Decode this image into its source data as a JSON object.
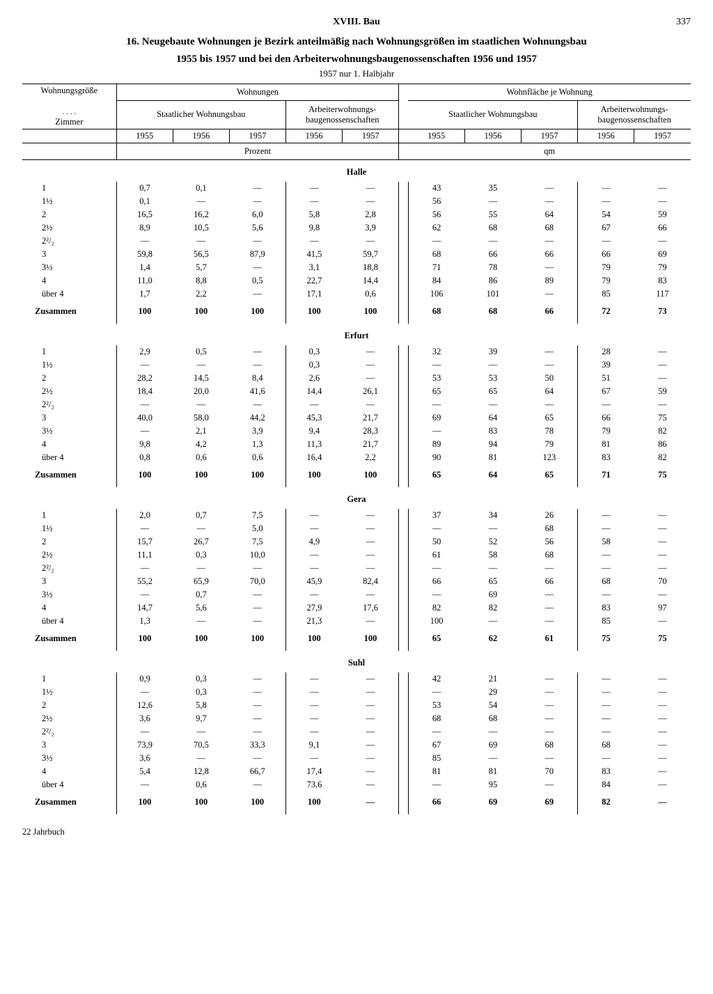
{
  "page": {
    "section": "XVIII. Bau",
    "number": "337",
    "title_l1": "16. Neugebaute Wohnungen je Bezirk anteilmäßig nach Wohnungsgrößen im staatlichen Wohnungsbau",
    "title_l2": "1955 bis 1957 und bei den Arbeiterwohnungsbaugenossenschaften 1956 und 1957",
    "subtitle": "1957 nur 1. Halbjahr",
    "footer": "22 Jahrbuch"
  },
  "headers": {
    "col_size": "Wohnungsgröße",
    "col_rooms": ". . . .\nZimmer",
    "wohnungen": "Wohnungen",
    "flaeche": "Wohnfläche je Wohnung",
    "staat": "Staatlicher Wohnungsbau",
    "awg": "Arbeiterwohnungs-\nbaugenossenschaften",
    "y1955": "1955",
    "y1956": "1956",
    "y1957": "1957",
    "unit_pct": "Prozent",
    "unit_qm": "qm",
    "sum": "Zusammen"
  },
  "row_labels": [
    "1",
    "1½",
    "2",
    "2½",
    "2²/₂",
    "3",
    "3½",
    "4",
    "über 4"
  ],
  "dash": "—",
  "groups": [
    {
      "name": "Halle",
      "rows": [
        [
          "0,7",
          "0,1",
          "—",
          "—",
          "—",
          "43",
          "35",
          "—",
          "—",
          "—"
        ],
        [
          "0,1",
          "—",
          "—",
          "—",
          "—",
          "56",
          "—",
          "—",
          "—",
          "—"
        ],
        [
          "16,5",
          "16,2",
          "6,0",
          "5,8",
          "2,8",
          "56",
          "55",
          "64",
          "54",
          "59"
        ],
        [
          "8,9",
          "10,5",
          "5,6",
          "9,8",
          "3,9",
          "62",
          "68",
          "68",
          "67",
          "66"
        ],
        [
          "—",
          "—",
          "—",
          "—",
          "—",
          "—",
          "—",
          "—",
          "—",
          "—"
        ],
        [
          "59,8",
          "56,5",
          "87,9",
          "41,5",
          "59,7",
          "68",
          "66",
          "66",
          "66",
          "69"
        ],
        [
          "1,4",
          "5,7",
          "—",
          "3,1",
          "18,8",
          "71",
          "78",
          "—",
          "79",
          "79"
        ],
        [
          "11,0",
          "8,8",
          "0,5",
          "22,7",
          "14,4",
          "84",
          "86",
          "89",
          "79",
          "83"
        ],
        [
          "1,7",
          "2,2",
          "—",
          "17,1",
          "0,6",
          "106",
          "101",
          "—",
          "85",
          "117"
        ]
      ],
      "sum": [
        "100",
        "100",
        "100",
        "100",
        "100",
        "68",
        "68",
        "66",
        "72",
        "73"
      ]
    },
    {
      "name": "Erfurt",
      "rows": [
        [
          "2,9",
          "0,5",
          "—",
          "0,3",
          "—",
          "32",
          "39",
          "—",
          "28",
          "—"
        ],
        [
          "—",
          "—",
          "—",
          "0,3",
          "—",
          "—",
          "—",
          "—",
          "39",
          "—"
        ],
        [
          "28,2",
          "14,5",
          "8,4",
          "2,6",
          "—",
          "53",
          "53",
          "50",
          "51",
          "—"
        ],
        [
          "18,4",
          "20,0",
          "41,6",
          "14,4",
          "26,1",
          "65",
          "65",
          "64",
          "67",
          "59"
        ],
        [
          "—",
          "—",
          "—",
          "—",
          "—",
          "—",
          "—",
          "—",
          "—",
          "—"
        ],
        [
          "40,0",
          "58,0",
          "44,2",
          "45,3",
          "21,7",
          "69",
          "64",
          "65",
          "66",
          "75"
        ],
        [
          "—",
          "2,1",
          "3,9",
          "9,4",
          "28,3",
          "—",
          "83",
          "78",
          "79",
          "82"
        ],
        [
          "9,8",
          "4,2",
          "1,3",
          "11,3",
          "21,7",
          "89",
          "94",
          "79",
          "81",
          "86"
        ],
        [
          "0,8",
          "0,6",
          "0,6",
          "16,4",
          "2,2",
          "90",
          "81",
          "123",
          "83",
          "82"
        ]
      ],
      "sum": [
        "100",
        "100",
        "100",
        "100",
        "100",
        "65",
        "64",
        "65",
        "71",
        "75"
      ]
    },
    {
      "name": "Gera",
      "rows": [
        [
          "2,0",
          "0,7",
          "7,5",
          "—",
          "—",
          "37",
          "34",
          "26",
          "—",
          "—"
        ],
        [
          "—",
          "—",
          "5,0",
          "—",
          "—",
          "—",
          "—",
          "68",
          "—",
          "—"
        ],
        [
          "15,7",
          "26,7",
          "7,5",
          "4,9",
          "—",
          "50",
          "52",
          "56",
          "58",
          "—"
        ],
        [
          "11,1",
          "0,3",
          "10,0",
          "—",
          "—",
          "61",
          "58",
          "68",
          "—",
          "—"
        ],
        [
          "—",
          "—",
          "—",
          "—",
          "—",
          "—",
          "—",
          "—",
          "—",
          "—"
        ],
        [
          "55,2",
          "65,9",
          "70,0",
          "45,9",
          "82,4",
          "66",
          "65",
          "66",
          "68",
          "70"
        ],
        [
          "—",
          "0,7",
          "—",
          "—",
          "—",
          "—",
          "69",
          "—",
          "—",
          "—"
        ],
        [
          "14,7",
          "5,6",
          "—",
          "27,9",
          "17,6",
          "82",
          "82",
          "—",
          "83",
          "97"
        ],
        [
          "1,3",
          "—",
          "—",
          "21,3",
          "—",
          "100",
          "—",
          "—",
          "85",
          "—"
        ]
      ],
      "sum": [
        "100",
        "100",
        "100",
        "100",
        "100",
        "65",
        "62",
        "61",
        "75",
        "75"
      ]
    },
    {
      "name": "Suhl",
      "rows": [
        [
          "0,9",
          "0,3",
          "—",
          "—",
          "—",
          "42",
          "21",
          "—",
          "—",
          "—"
        ],
        [
          "—",
          "0,3",
          "—",
          "—",
          "—",
          "—",
          "29",
          "—",
          "—",
          "—"
        ],
        [
          "12,6",
          "5,8",
          "—",
          "—",
          "—",
          "53",
          "54",
          "—",
          "—",
          "—"
        ],
        [
          "3,6",
          "9,7",
          "—",
          "—",
          "—",
          "68",
          "68",
          "—",
          "—",
          "—"
        ],
        [
          "—",
          "—",
          "—",
          "—",
          "—",
          "—",
          "—",
          "—",
          "—",
          "—"
        ],
        [
          "73,9",
          "70,5",
          "33,3",
          "9,1",
          "—",
          "67",
          "69",
          "68",
          "68",
          "—"
        ],
        [
          "3,6",
          "—",
          "—",
          "—",
          "—",
          "85",
          "—",
          "—",
          "—",
          "—"
        ],
        [
          "5,4",
          "12,8",
          "66,7",
          "17,4",
          "—",
          "81",
          "81",
          "70",
          "83",
          "—"
        ],
        [
          "—",
          "0,6",
          "—",
          "73,6",
          "—",
          "—",
          "95",
          "—",
          "84",
          "—"
        ]
      ],
      "sum": [
        "100",
        "100",
        "100",
        "100",
        "—",
        "66",
        "69",
        "69",
        "82",
        "—"
      ]
    }
  ],
  "style": {
    "bg": "#ffffff",
    "fg": "#000000",
    "font": "Times New Roman",
    "base_fontsize_pt": 10,
    "title_fontsize_pt": 12,
    "rule_color": "#000000"
  }
}
